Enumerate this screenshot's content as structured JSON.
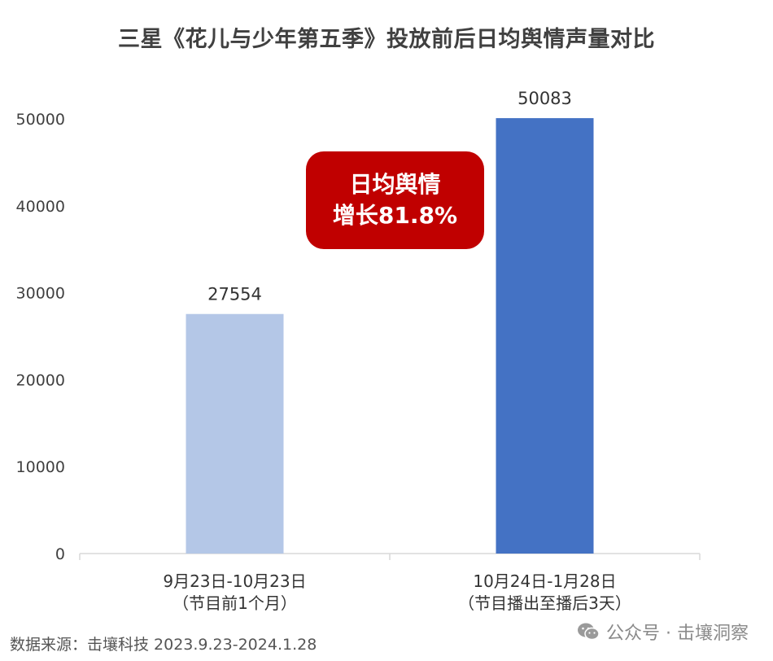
{
  "chart_data": {
    "type": "bar",
    "title": "三星《花儿与少年第五季》投放前后日均舆情声量对比",
    "categories": [
      [
        "9月23日-10月23日",
        "（节目前1个月）"
      ],
      [
        "10月24日-1月28日",
        "（节目播出至播后3天）"
      ]
    ],
    "values": [
      27554,
      50083
    ],
    "data_labels": [
      "27554",
      "50083"
    ],
    "ylim": [
      0,
      50000
    ],
    "yticks": [
      0,
      10000,
      20000,
      30000,
      40000,
      50000
    ],
    "ytick_labels": [
      "0",
      "10000",
      "20000",
      "30000",
      "40000",
      "50000"
    ],
    "bar_colors": [
      "#b4c7e7",
      "#4472c4"
    ],
    "grid": false,
    "legend": "none"
  },
  "callout": {
    "line1": "日均舆情",
    "line2": "增长81.8%",
    "color": "#c00000"
  },
  "source": "数据来源：击壤科技 2023.9.23-2024.1.28",
  "watermark": "公众号 · 击壤洞察"
}
